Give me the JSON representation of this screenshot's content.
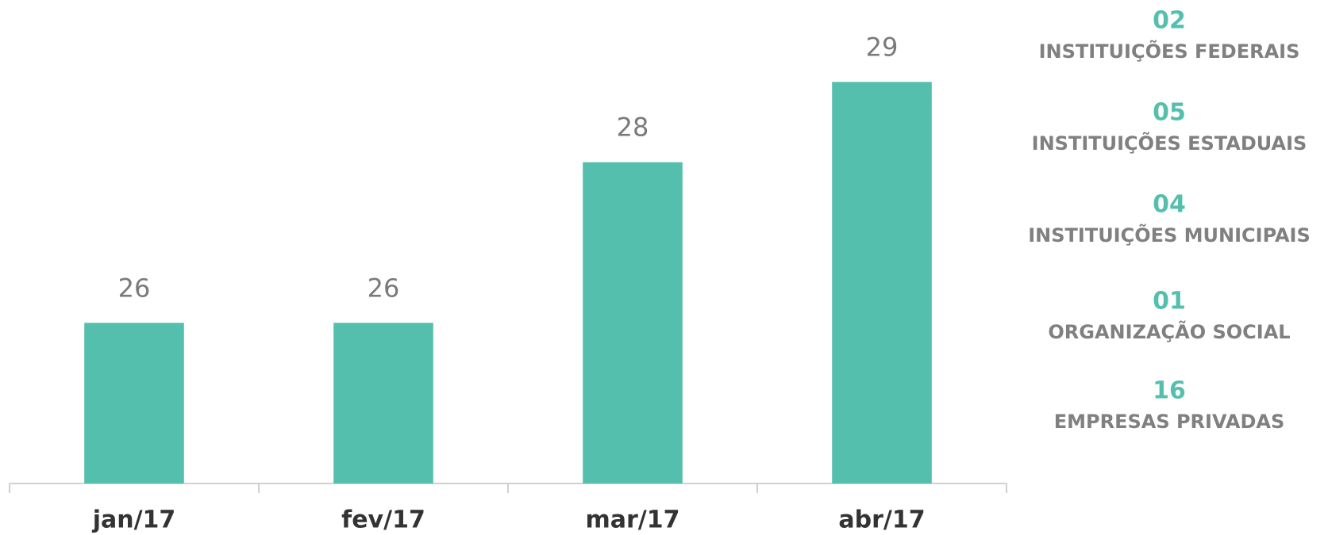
{
  "chart_data": {
    "type": "bar",
    "categories": [
      "jan/17",
      "fev/17",
      "mar/17",
      "abr/17"
    ],
    "values": [
      26,
      26,
      28,
      29
    ],
    "color": "#55bfae",
    "ylim": [
      24,
      30
    ]
  },
  "legend_items": [
    {
      "value": "02",
      "label": "INSTITUIÇÕES FEDERAIS"
    },
    {
      "value": "05",
      "label": "INSTITUIÇÕES ESTADUAIS"
    },
    {
      "value": "04",
      "label": "INSTITUIÇÕES MUNICIPAIS"
    },
    {
      "value": "01",
      "label": "ORGANIZAÇÃO SOCIAL"
    },
    {
      "value": "16",
      "label": "EMPRESAS PRIVADAS"
    }
  ]
}
